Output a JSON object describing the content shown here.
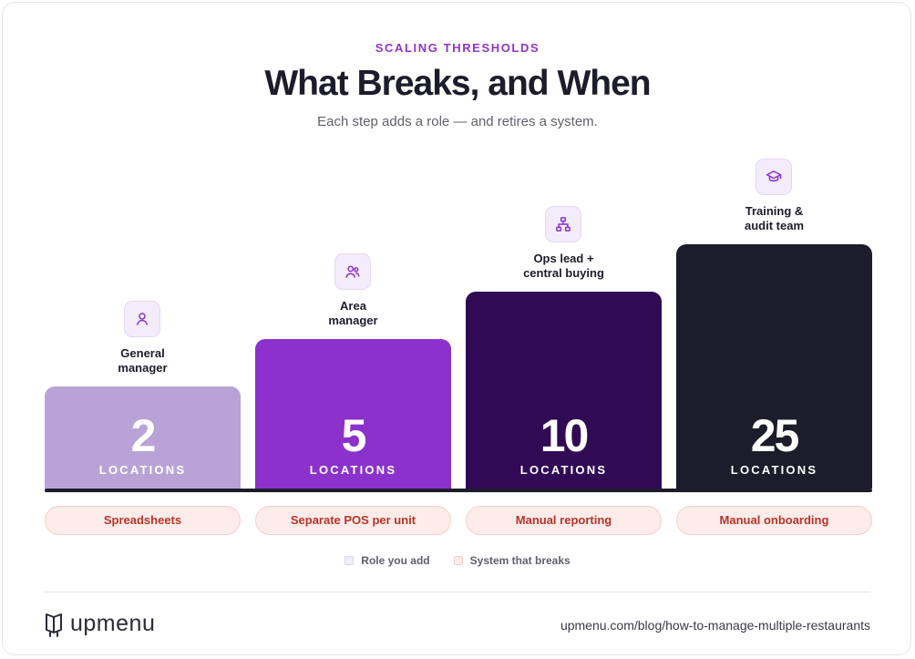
{
  "header": {
    "eyebrow": "SCALING THRESHOLDS",
    "title": "What Breaks, and When",
    "subtitle": "Each step adds a role — and retires a system."
  },
  "steps": [
    {
      "count": "2",
      "unit": "LOCATIONS",
      "role": "General manager",
      "role_lines": [
        "General",
        "manager"
      ],
      "system": "Spreadsheets",
      "icon": "user-icon",
      "color": "#b9a3d6"
    },
    {
      "count": "5",
      "unit": "LOCATIONS",
      "role": "Area manager",
      "role_lines": [
        "Area",
        "manager"
      ],
      "system": "Separate POS per unit",
      "icon": "users-icon",
      "color": "#8b32cc"
    },
    {
      "count": "10",
      "unit": "LOCATIONS",
      "role": "Ops lead + central buying",
      "role_lines": [
        "Ops lead +",
        "central buying"
      ],
      "system": "Manual reporting",
      "icon": "org-chart-icon",
      "color": "#310a56"
    },
    {
      "count": "25",
      "unit": "LOCATIONS",
      "role": "Training & audit team",
      "role_lines": [
        "Training &",
        "audit team"
      ],
      "system": "Manual onboarding",
      "icon": "graduation-cap-icon",
      "color": "#1c1c2b"
    }
  ],
  "legend": {
    "role": "Role you add",
    "system": "System that breaks"
  },
  "footer": {
    "logo_text": "upmenu",
    "url": "upmenu.com/blog/how-to-manage-multiple-restaurants"
  }
}
